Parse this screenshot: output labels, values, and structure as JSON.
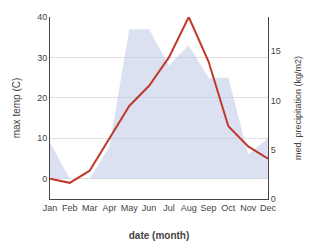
{
  "chart_data": {
    "type": "line",
    "categories": [
      "Jan",
      "Feb",
      "Mar",
      "Apr",
      "May",
      "Jun",
      "Jul",
      "Aug",
      "Sep",
      "Oct",
      "Nov",
      "Dec"
    ],
    "series": [
      {
        "type": "area",
        "color": "#bfc9e8",
        "values": [
          9,
          0,
          0,
          8,
          37,
          37,
          28,
          33,
          25,
          25,
          6,
          10
        ]
      },
      {
        "type": "line",
        "color": "#c0392b",
        "values": [
          0,
          -1,
          2,
          10,
          18,
          23,
          30,
          40,
          29,
          13,
          8,
          5
        ]
      }
    ],
    "xlabel": "date (month)",
    "ylabel": "max temp (C)",
    "y2label": "med. precipitation (kg/m2)",
    "ylim": [
      -5,
      40
    ],
    "yticks": [
      0,
      10,
      20,
      30,
      40
    ],
    "y2lim": [
      0,
      18.46
    ],
    "y2ticks": [
      0,
      5,
      10,
      15
    ],
    "grid": true
  }
}
